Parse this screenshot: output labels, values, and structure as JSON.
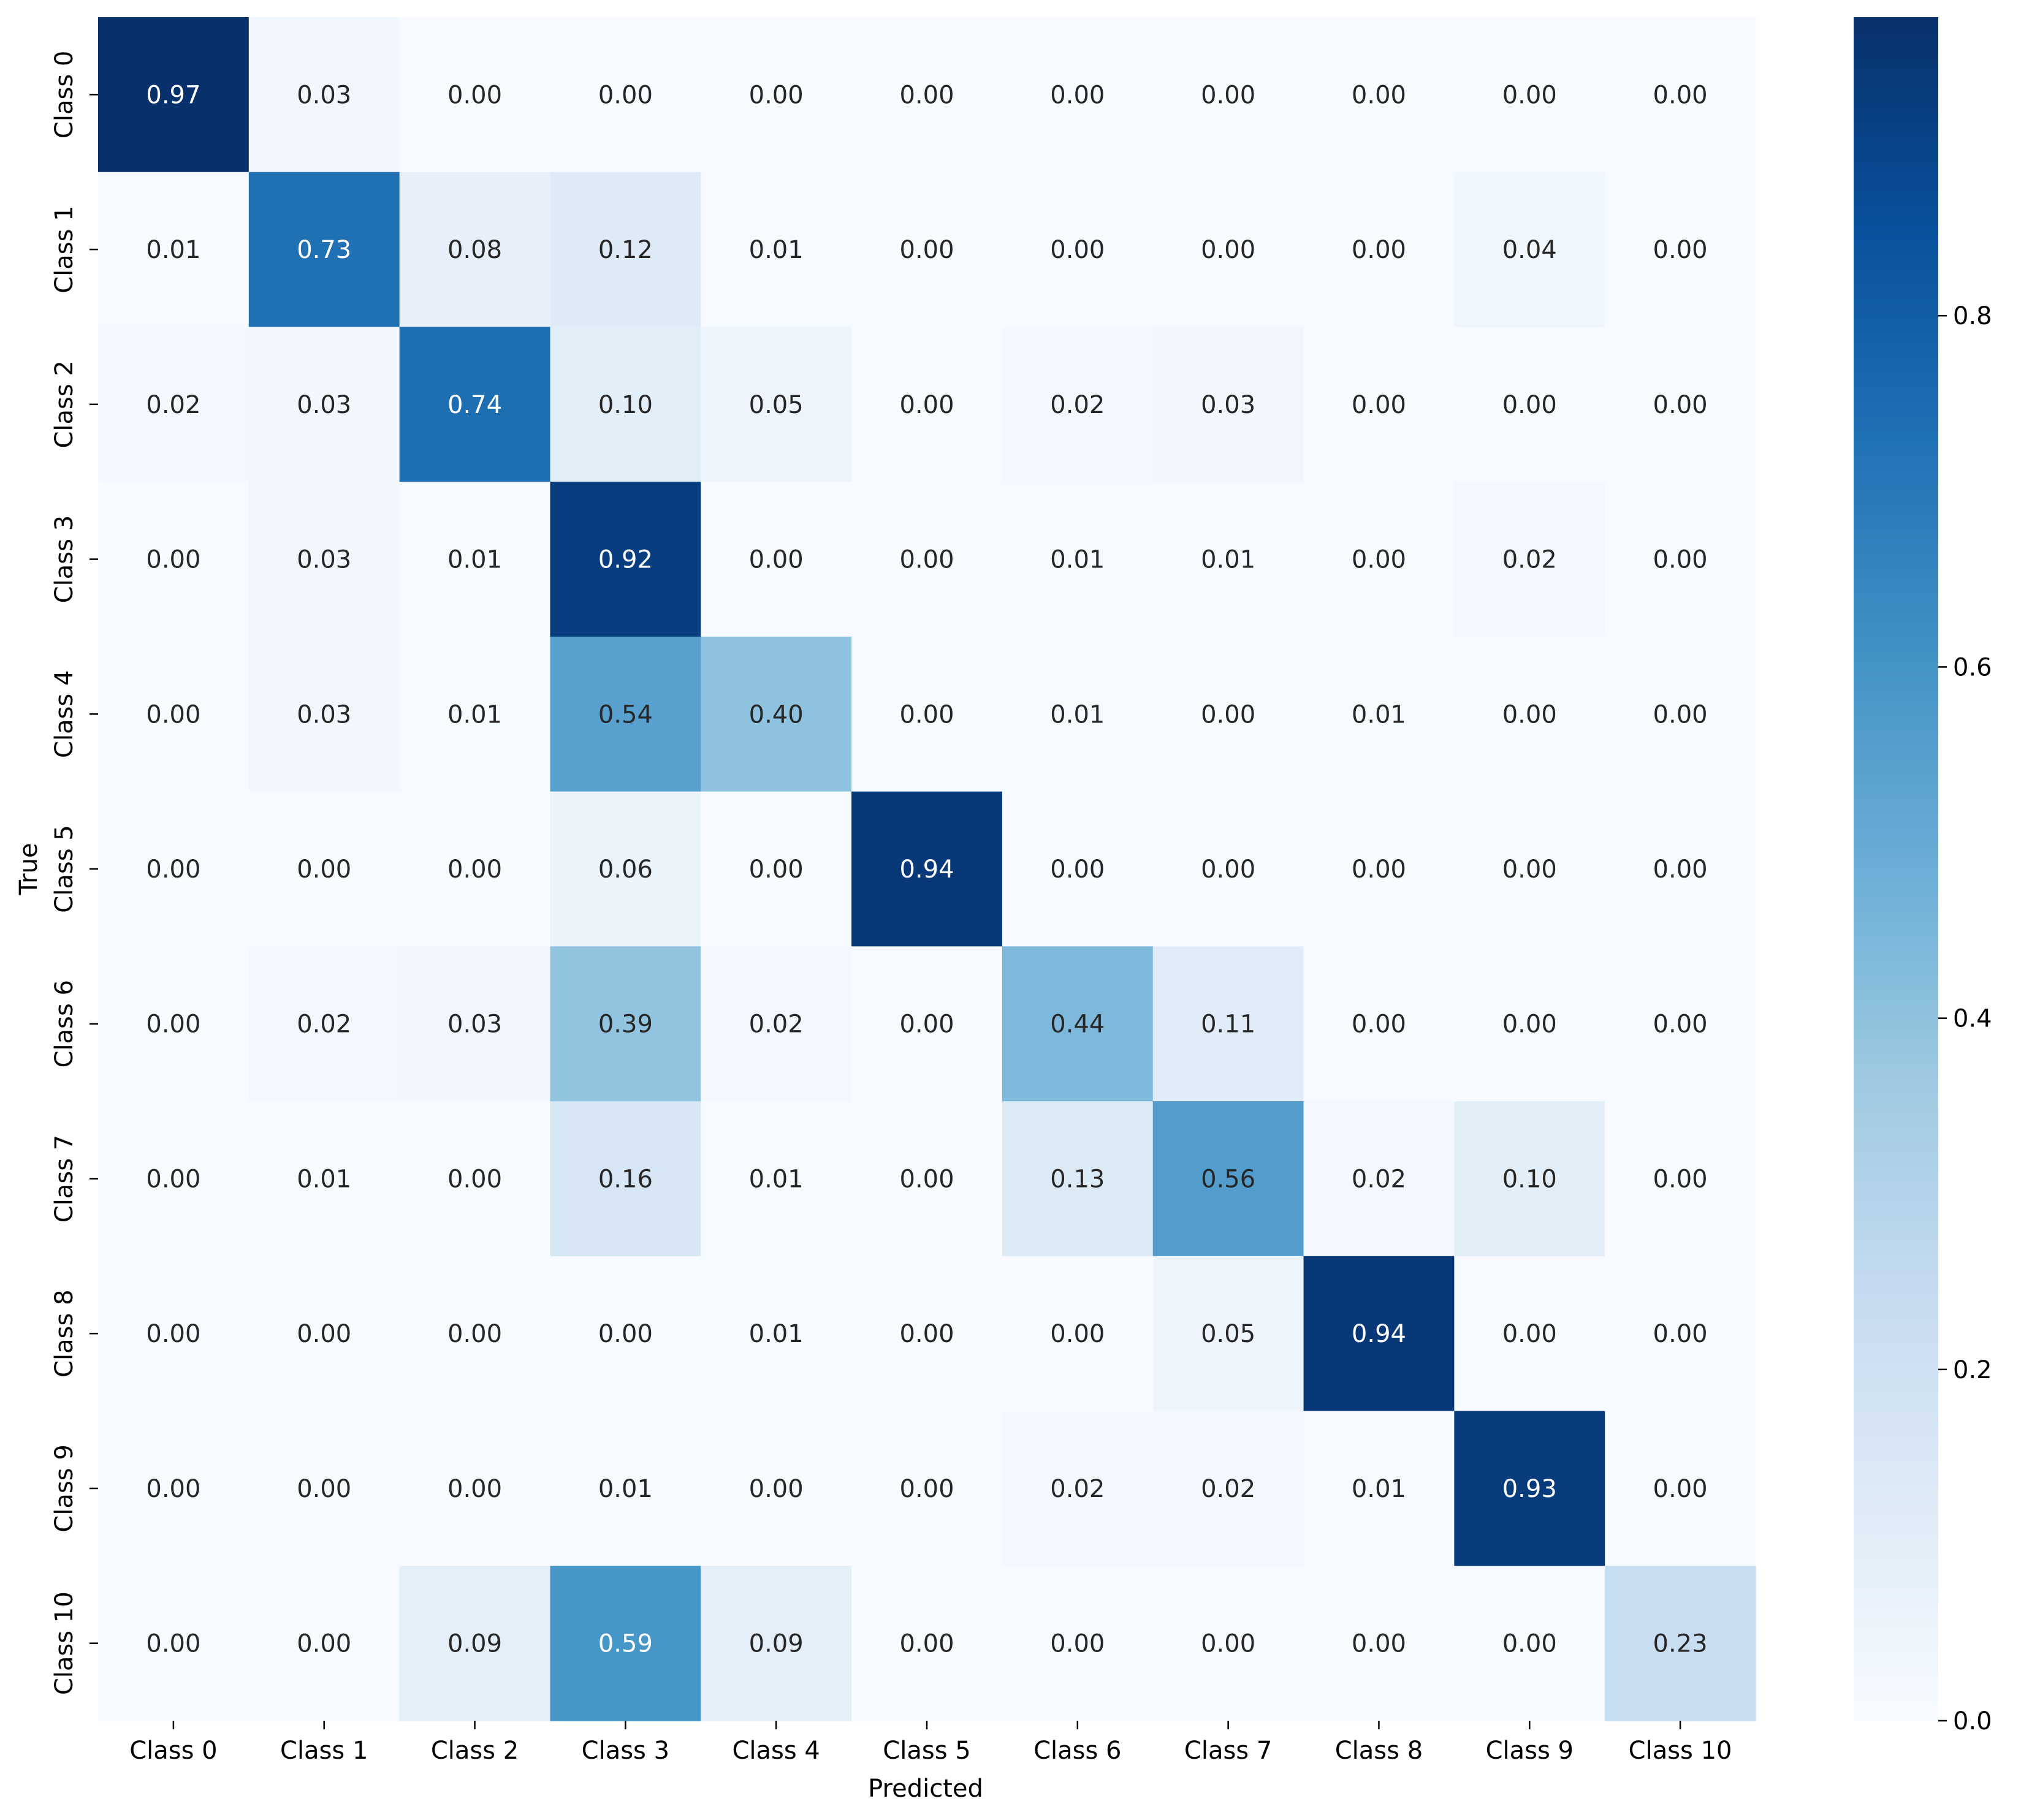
{
  "chart_data": {
    "type": "heatmap",
    "title": "",
    "xlabel": "Predicted",
    "ylabel": "True",
    "x_categories": [
      "Class 0",
      "Class 1",
      "Class 2",
      "Class 3",
      "Class 4",
      "Class 5",
      "Class 6",
      "Class 7",
      "Class 8",
      "Class 9",
      "Class 10"
    ],
    "y_categories": [
      "Class 0",
      "Class 1",
      "Class 2",
      "Class 3",
      "Class 4",
      "Class 5",
      "Class 6",
      "Class 7",
      "Class 8",
      "Class 9",
      "Class 10"
    ],
    "values": [
      [
        0.97,
        0.03,
        0.0,
        0.0,
        0.0,
        0.0,
        0.0,
        0.0,
        0.0,
        0.0,
        0.0
      ],
      [
        0.01,
        0.73,
        0.08,
        0.12,
        0.01,
        0.0,
        0.0,
        0.0,
        0.0,
        0.04,
        0.0
      ],
      [
        0.02,
        0.03,
        0.74,
        0.1,
        0.05,
        0.0,
        0.02,
        0.03,
        0.0,
        0.0,
        0.0
      ],
      [
        0.0,
        0.03,
        0.01,
        0.92,
        0.0,
        0.0,
        0.01,
        0.01,
        0.0,
        0.02,
        0.0
      ],
      [
        0.0,
        0.03,
        0.01,
        0.54,
        0.4,
        0.0,
        0.01,
        0.0,
        0.01,
        0.0,
        0.0
      ],
      [
        0.0,
        0.0,
        0.0,
        0.06,
        0.0,
        0.94,
        0.0,
        0.0,
        0.0,
        0.0,
        0.0
      ],
      [
        0.0,
        0.02,
        0.03,
        0.39,
        0.02,
        0.0,
        0.44,
        0.11,
        0.0,
        0.0,
        0.0
      ],
      [
        0.0,
        0.01,
        0.0,
        0.16,
        0.01,
        0.0,
        0.13,
        0.56,
        0.02,
        0.1,
        0.0
      ],
      [
        0.0,
        0.0,
        0.0,
        0.0,
        0.01,
        0.0,
        0.0,
        0.05,
        0.94,
        0.0,
        0.0
      ],
      [
        0.0,
        0.0,
        0.0,
        0.01,
        0.0,
        0.0,
        0.02,
        0.02,
        0.01,
        0.93,
        0.0
      ],
      [
        0.0,
        0.0,
        0.09,
        0.59,
        0.09,
        0.0,
        0.0,
        0.0,
        0.0,
        0.0,
        0.23
      ]
    ],
    "value_format": "0.00",
    "colormap": "Blues",
    "colorbar": {
      "range": [
        0.0,
        0.97
      ],
      "ticks": [
        0.0,
        0.2,
        0.4,
        0.6,
        0.8
      ],
      "tick_labels": [
        "0.0",
        "0.2",
        "0.4",
        "0.6",
        "0.8"
      ]
    },
    "grid": false,
    "text_colors": {
      "dark": "#262626",
      "light": "#ffffff"
    },
    "axis_color": "#000000"
  }
}
